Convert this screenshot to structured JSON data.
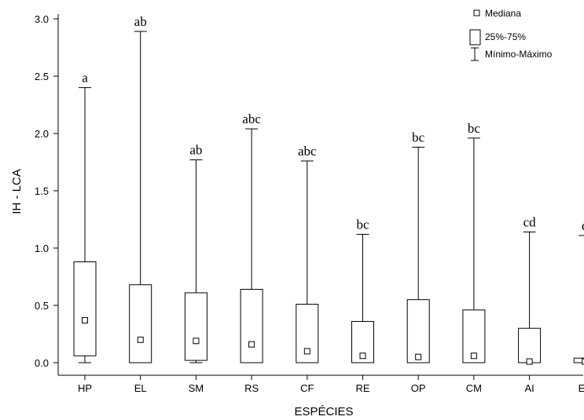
{
  "chart_data": {
    "type": "box",
    "xlabel": "ESPÉCIES",
    "ylabel": "IH - LCA",
    "ylim": [
      0,
      3.0
    ],
    "yticks": [
      "0.0",
      "0.5",
      "1.0",
      "1.5",
      "2.0",
      "2.5",
      "3.0"
    ],
    "legend": {
      "position": "top-right",
      "median": "Mediana",
      "box": "25%-75%",
      "whisker": "Mínimo-Máximo"
    },
    "categories": [
      {
        "name": "HP",
        "min": 0.0,
        "q1": 0.06,
        "median": 0.37,
        "q3": 0.88,
        "max": 2.4,
        "letters": "a"
      },
      {
        "name": "EL",
        "min": 0.0,
        "q1": 0.0,
        "median": 0.2,
        "q3": 0.68,
        "max": 2.89,
        "letters": "ab"
      },
      {
        "name": "SM",
        "min": 0.0,
        "q1": 0.02,
        "median": 0.19,
        "q3": 0.61,
        "max": 1.77,
        "letters": "ab"
      },
      {
        "name": "RS",
        "min": 0.0,
        "q1": 0.0,
        "median": 0.16,
        "q3": 0.64,
        "max": 2.04,
        "letters": "abc"
      },
      {
        "name": "CF",
        "min": 0.0,
        "q1": 0.0,
        "median": 0.1,
        "q3": 0.51,
        "max": 1.76,
        "letters": "abc"
      },
      {
        "name": "RE",
        "min": 0.0,
        "q1": 0.0,
        "median": 0.06,
        "q3": 0.36,
        "max": 1.12,
        "letters": "bc"
      },
      {
        "name": "OP",
        "min": 0.0,
        "q1": 0.0,
        "median": 0.05,
        "q3": 0.55,
        "max": 1.88,
        "letters": "bc"
      },
      {
        "name": "CM",
        "min": 0.0,
        "q1": 0.0,
        "median": 0.06,
        "q3": 0.46,
        "max": 1.96,
        "letters": "bc"
      },
      {
        "name": "AI",
        "min": 0.0,
        "q1": 0.0,
        "median": 0.01,
        "q3": 0.3,
        "max": 1.14,
        "letters": "cd"
      },
      {
        "name": "EB",
        "min": 0.0,
        "q1": 0.0,
        "median": 0.01,
        "q3": 0.04,
        "max": 1.11,
        "letters": "d"
      }
    ]
  }
}
